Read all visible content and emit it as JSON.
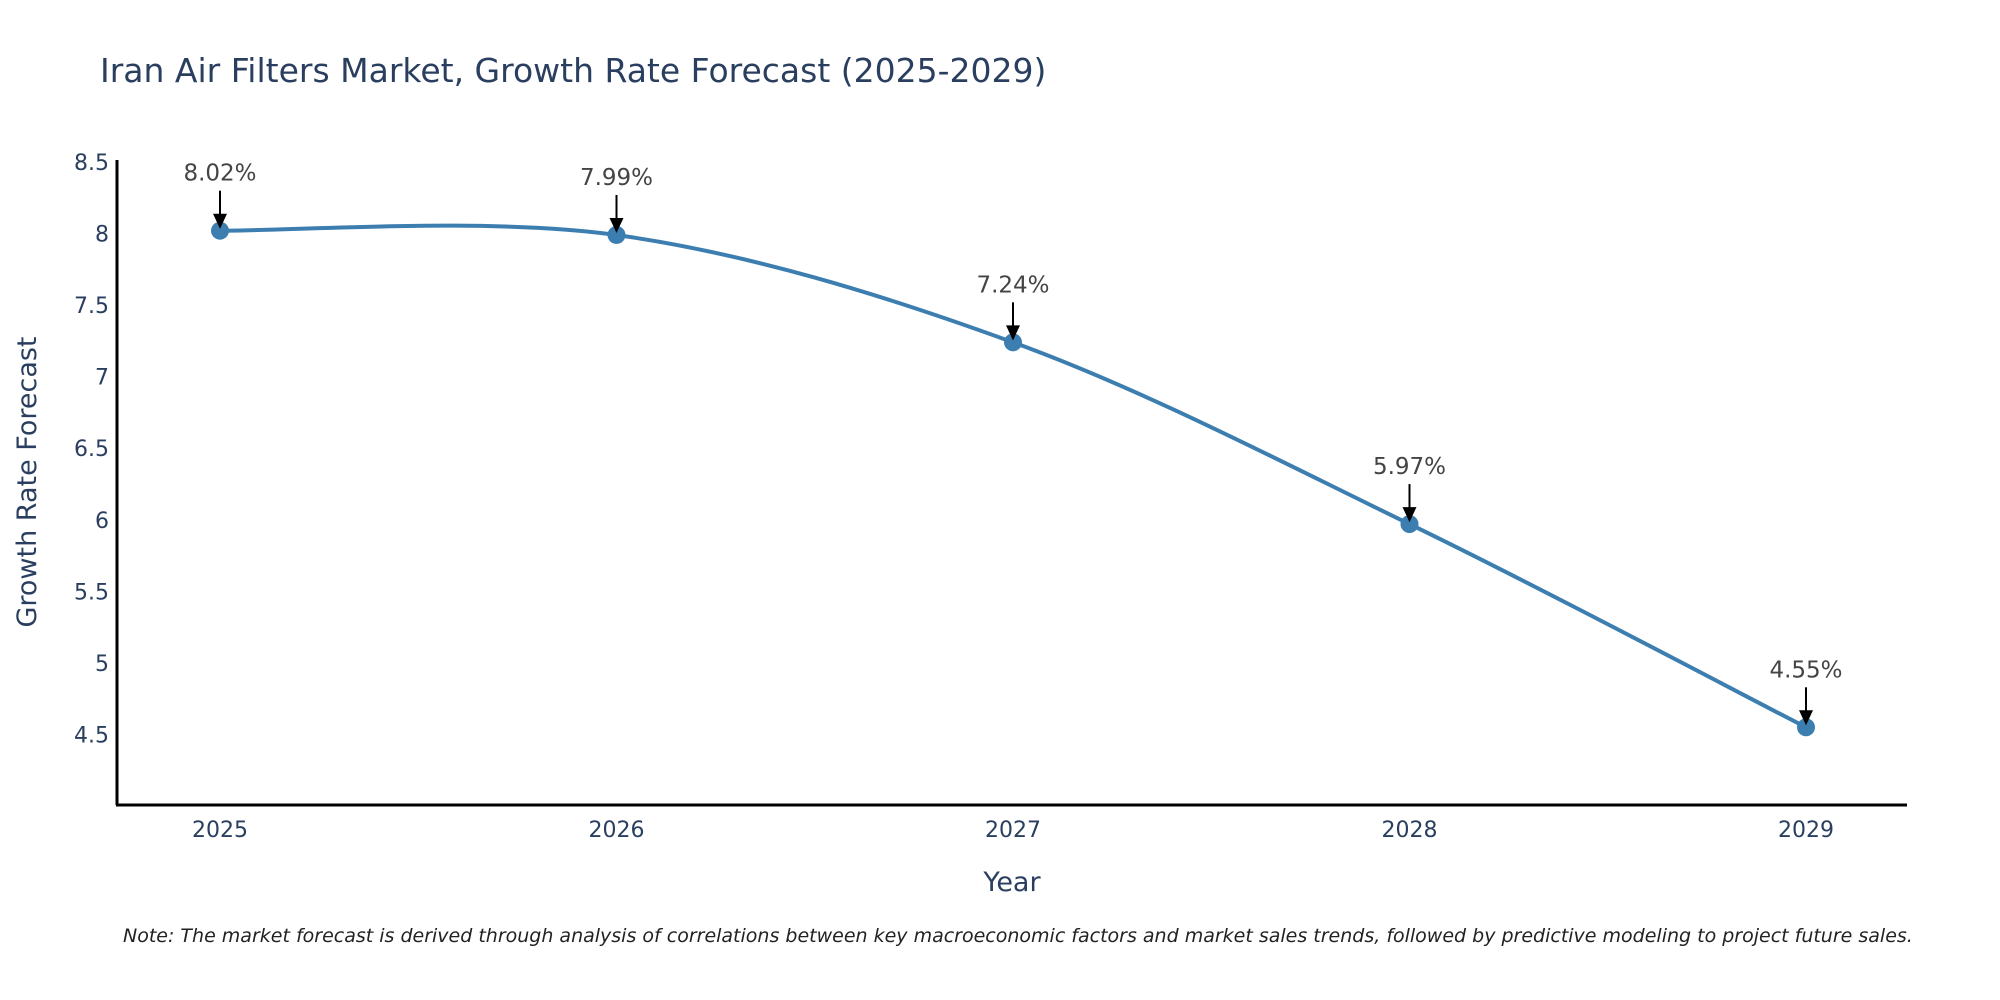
{
  "chart_data": {
    "type": "line",
    "title": "Iran Air Filters Market, Growth Rate Forecast (2025-2029)",
    "xlabel": "Year",
    "ylabel": "Growth Rate Forecast",
    "categories": [
      "2025",
      "2026",
      "2027",
      "2028",
      "2029"
    ],
    "series": [
      {
        "name": "Growth Rate Forecast",
        "values": [
          8.02,
          7.99,
          7.24,
          5.97,
          4.55
        ],
        "labels": [
          "8.02%",
          "7.99%",
          "7.24%",
          "5.97%",
          "4.55%"
        ],
        "color": "#3d7eb0"
      }
    ],
    "ylim": [
      4.0,
      8.5
    ],
    "yticks": [
      "4.5",
      "5",
      "5.5",
      "6",
      "6.5",
      "7",
      "7.5",
      "8",
      "8.5"
    ],
    "grid": false,
    "legend": "none",
    "note": "Note: The market forecast is derived through analysis of correlations between key macroeconomic factors and market sales trends, followed by predictive modeling to project future sales."
  }
}
